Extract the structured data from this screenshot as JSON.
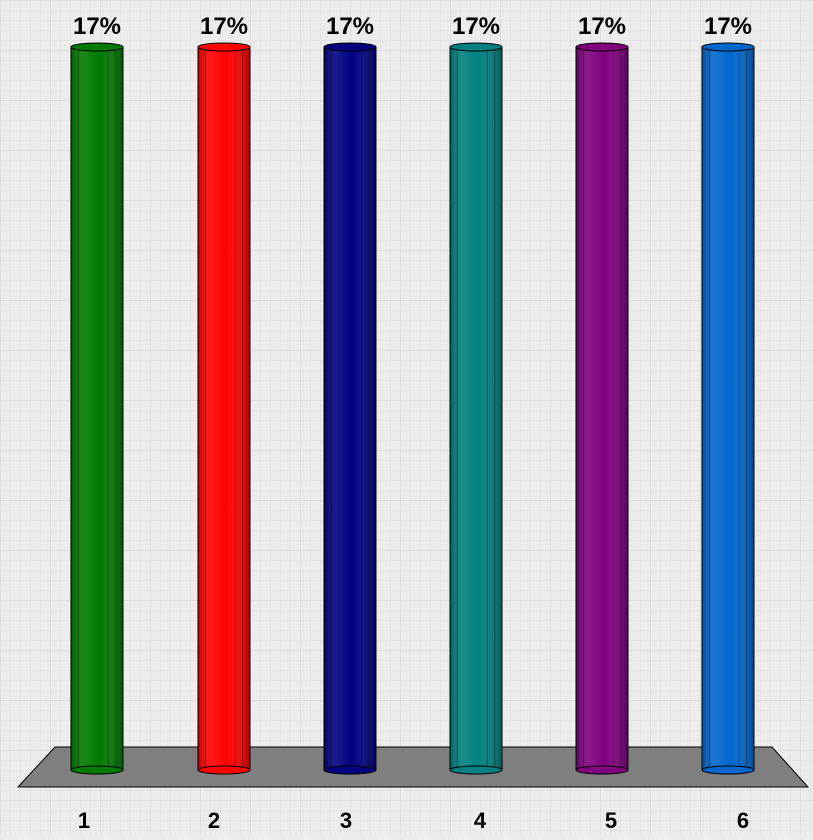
{
  "chart_data": {
    "type": "bar",
    "categories": [
      "1",
      "2",
      "3",
      "4",
      "5",
      "6"
    ],
    "values": [
      17,
      17,
      17,
      17,
      17,
      17
    ],
    "data_labels": [
      "17%",
      "17%",
      "17%",
      "17%",
      "17%",
      "17%"
    ],
    "ylim": [
      0,
      17
    ],
    "grid": true,
    "legend": "none",
    "colors": [
      "#007a00",
      "#ff0000",
      "#000080",
      "#008080",
      "#800080",
      "#0066cc"
    ]
  }
}
